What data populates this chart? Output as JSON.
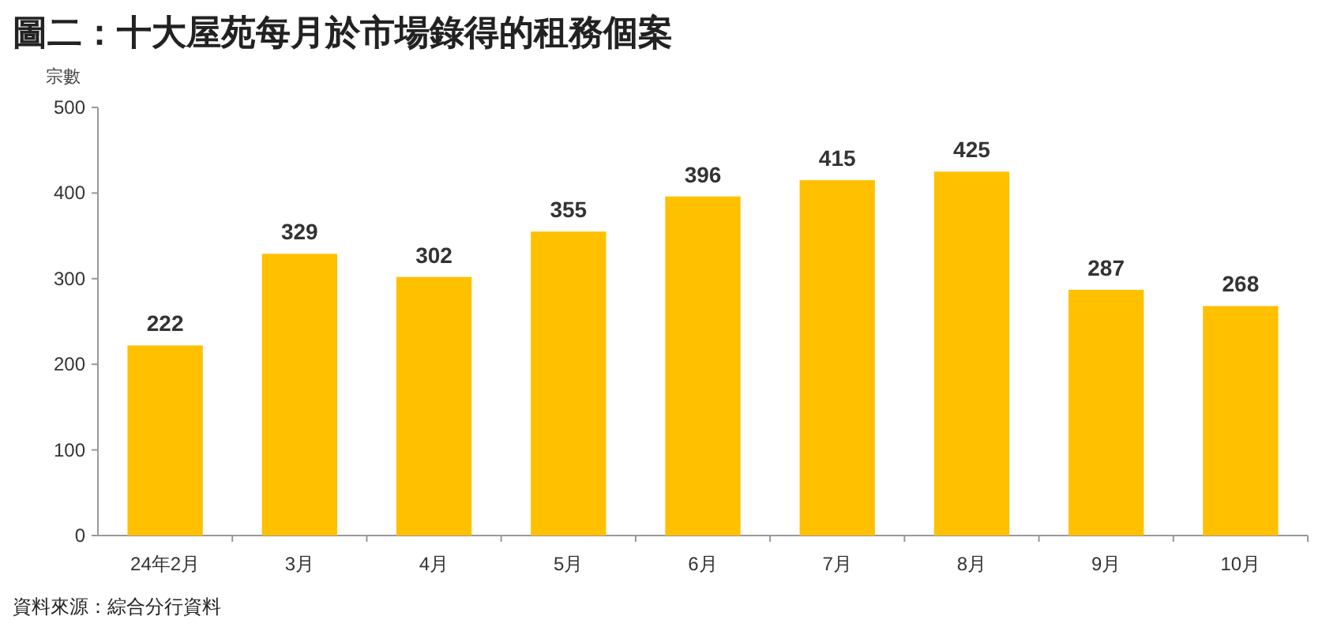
{
  "chart_data": {
    "type": "bar",
    "title": "圖二：十大屋苑每月於市場錄得的租務個案",
    "ylabel": "宗數",
    "categories": [
      "24年2月",
      "3月",
      "4月",
      "5月",
      "6月",
      "7月",
      "8月",
      "9月",
      "10月"
    ],
    "values": [
      222,
      329,
      302,
      355,
      396,
      415,
      425,
      287,
      268
    ],
    "color": "#ffc000",
    "ylim": [
      0,
      500
    ],
    "yticks": [
      0,
      100,
      200,
      300,
      400,
      500
    ],
    "data_labels": true,
    "annotations": [
      "資料來源：綜合分行資料"
    ]
  }
}
